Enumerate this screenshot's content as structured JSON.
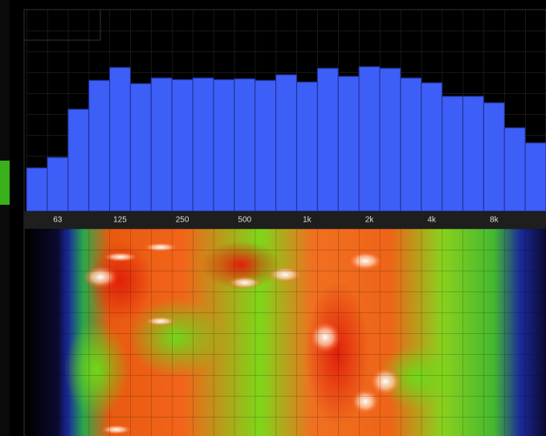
{
  "chart_data": {
    "type": "bar",
    "categories": [
      null,
      "63",
      null,
      null,
      "125",
      null,
      null,
      "250",
      null,
      null,
      "500",
      null,
      null,
      "1k",
      null,
      null,
      "2k",
      null,
      null,
      "4k",
      null,
      null,
      "8k",
      null,
      null
    ],
    "values": [
      21.5,
      26.7,
      50.6,
      64.9,
      71.3,
      63.3,
      66.1,
      65.3,
      66.1,
      65.3,
      65.7,
      64.9,
      67.7,
      64.1,
      70.9,
      66.9,
      71.7,
      70.9,
      66.1,
      63.7,
      57.0,
      57.0,
      53.8,
      41.4,
      33.9
    ],
    "color": "#3d5ef7",
    "ylim": [
      0,
      100
    ],
    "grid": true
  }
}
